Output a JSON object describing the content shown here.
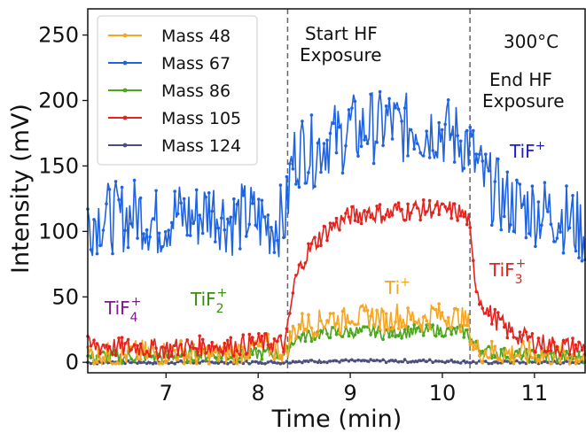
{
  "chart_data": {
    "type": "line",
    "title": "",
    "xlabel": "Time (min)",
    "ylabel": "Intensity (mV)",
    "xlim": [
      6.15,
      11.55
    ],
    "ylim": [
      -8,
      270
    ],
    "x_ticks": [
      7,
      8,
      9,
      10,
      11
    ],
    "y_ticks": [
      0,
      50,
      100,
      150,
      200,
      250
    ],
    "grid": false,
    "legend_position": "top-left",
    "vlines": [
      8.32,
      10.3
    ],
    "annotations": {
      "temperature": "300°C",
      "start_line1": "Start HF",
      "start_line2": "Exposure",
      "end_line1": "End HF",
      "end_line2": "Exposure",
      "tif_base": "TiF",
      "tif_sup": "+",
      "tif3_base": "TiF",
      "tif3_sub": "3",
      "tif3_sup": "+",
      "ti_base": "Ti",
      "ti_sup": "+",
      "tif4_base": "TiF",
      "tif4_sub": "4",
      "tif4_sup": "+",
      "tif2_base": "TiF",
      "tif2_sub": "2",
      "tif2_sup": "+"
    },
    "series": [
      {
        "name": "Mass 48",
        "color": "#f5a623",
        "x": [
          6.15,
          6.3,
          6.5,
          6.7,
          6.9,
          7.1,
          7.3,
          7.5,
          7.7,
          7.9,
          8.1,
          8.3,
          8.36,
          8.4,
          8.5,
          8.6,
          8.7,
          8.8,
          8.9,
          9.0,
          9.1,
          9.2,
          9.3,
          9.4,
          9.5,
          9.6,
          9.7,
          9.8,
          9.9,
          10.0,
          10.1,
          10.2,
          10.28,
          10.34,
          10.4,
          10.5,
          10.7,
          10.9,
          11.1,
          11.3,
          11.55
        ],
        "y": [
          5,
          7,
          4,
          8,
          6,
          9,
          5,
          7,
          6,
          10,
          12,
          8,
          20,
          25,
          30,
          28,
          32,
          35,
          30,
          38,
          33,
          36,
          34,
          30,
          37,
          32,
          35,
          31,
          38,
          34,
          36,
          33,
          30,
          12,
          9,
          8,
          7,
          6,
          5,
          6,
          5
        ]
      },
      {
        "name": "Mass 67",
        "color": "#1f63e0",
        "x": [
          6.15,
          6.3,
          6.5,
          6.7,
          6.9,
          7.1,
          7.3,
          7.5,
          7.7,
          7.9,
          8.1,
          8.3,
          8.36,
          8.4,
          8.5,
          8.6,
          8.7,
          8.8,
          8.9,
          9.0,
          9.1,
          9.2,
          9.3,
          9.4,
          9.5,
          9.6,
          9.7,
          9.8,
          9.9,
          10.0,
          10.1,
          10.2,
          10.28,
          10.34,
          10.4,
          10.5,
          10.7,
          10.9,
          11.1,
          11.3,
          11.55
        ],
        "y": [
          108,
          112,
          110,
          115,
          106,
          113,
          110,
          118,
          108,
          112,
          105,
          110,
          150,
          158,
          165,
          160,
          168,
          172,
          170,
          180,
          175,
          182,
          178,
          185,
          180,
          178,
          183,
          176,
          180,
          177,
          174,
          170,
          168,
          155,
          145,
          135,
          122,
          118,
          115,
          112,
          100
        ]
      },
      {
        "name": "Mass 86",
        "color": "#4ca51e",
        "x": [
          6.15,
          6.3,
          6.5,
          6.7,
          6.9,
          7.1,
          7.3,
          7.5,
          7.7,
          7.9,
          8.1,
          8.3,
          8.36,
          8.4,
          8.5,
          8.6,
          8.7,
          8.8,
          8.9,
          9.0,
          9.1,
          9.2,
          9.3,
          9.4,
          9.5,
          9.6,
          9.7,
          9.8,
          9.9,
          10.0,
          10.1,
          10.2,
          10.28,
          10.34,
          10.4,
          10.5,
          10.7,
          10.9,
          11.1,
          11.3,
          11.55
        ],
        "y": [
          4,
          5,
          4,
          5,
          4,
          5,
          5,
          6,
          5,
          6,
          7,
          6,
          15,
          18,
          20,
          21,
          22,
          23,
          22,
          24,
          23,
          24,
          23,
          22,
          24,
          23,
          24,
          23,
          25,
          24,
          23,
          24,
          22,
          14,
          10,
          8,
          6,
          5,
          5,
          4,
          4
        ]
      },
      {
        "name": "Mass 105",
        "color": "#e5231e",
        "x": [
          6.15,
          6.3,
          6.5,
          6.7,
          6.9,
          7.1,
          7.3,
          7.5,
          7.7,
          7.9,
          8.1,
          8.3,
          8.36,
          8.4,
          8.5,
          8.6,
          8.7,
          8.8,
          8.9,
          9.0,
          9.1,
          9.2,
          9.3,
          9.4,
          9.5,
          9.6,
          9.7,
          9.8,
          9.9,
          10.0,
          10.1,
          10.2,
          10.28,
          10.34,
          10.4,
          10.5,
          10.7,
          10.9,
          11.1,
          11.3,
          11.55
        ],
        "y": [
          12,
          13,
          11,
          12,
          10,
          11,
          12,
          13,
          12,
          14,
          15,
          14,
          45,
          62,
          80,
          90,
          98,
          103,
          108,
          112,
          113,
          115,
          114,
          113,
          116,
          115,
          117,
          116,
          118,
          115,
          116,
          114,
          110,
          70,
          50,
          38,
          25,
          18,
          14,
          12,
          11
        ]
      },
      {
        "name": "Mass 124",
        "color": "#4a4f7c",
        "x": [
          6.15,
          6.5,
          7.0,
          7.5,
          8.0,
          8.3,
          8.5,
          9.0,
          9.5,
          10.0,
          10.3,
          10.5,
          11.0,
          11.55
        ],
        "y": [
          0,
          0,
          0,
          0,
          0,
          0,
          1,
          1,
          1,
          1,
          0,
          0,
          0,
          0
        ]
      }
    ]
  }
}
